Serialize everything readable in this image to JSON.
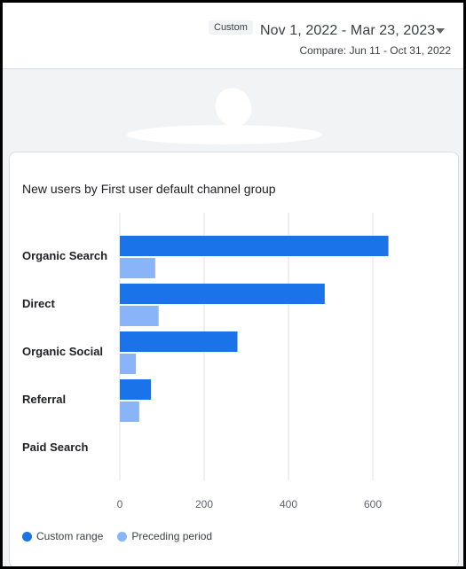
{
  "header": {
    "custom_chip": "Custom",
    "date_range": "Nov 1, 2022 - Mar 23, 2023",
    "compare": "Compare: Jun 11 - Oct 31, 2022"
  },
  "card": {
    "title": "New users by First user default channel group"
  },
  "colors": {
    "custom_range": "#1a73e8",
    "preceding_period": "#8ab4f8",
    "grid": "#e0e0e0"
  },
  "chart_data": {
    "type": "bar",
    "orientation": "horizontal",
    "title": "New users by First user default channel group",
    "categories": [
      "Organic Search",
      "Direct",
      "Organic Social",
      "Referral",
      "Paid Search"
    ],
    "series": [
      {
        "name": "Custom range",
        "values": [
          637,
          486,
          279,
          74,
          0
        ]
      },
      {
        "name": "Preceding period",
        "values": [
          84,
          92,
          38,
          46,
          0
        ]
      }
    ],
    "xlim": [
      0,
      650
    ],
    "ticks": [
      0,
      200,
      400,
      600
    ],
    "grid": true,
    "legend": "bottom-left"
  },
  "legend": {
    "custom_range": "Custom range",
    "preceding_period": "Preceding period"
  }
}
